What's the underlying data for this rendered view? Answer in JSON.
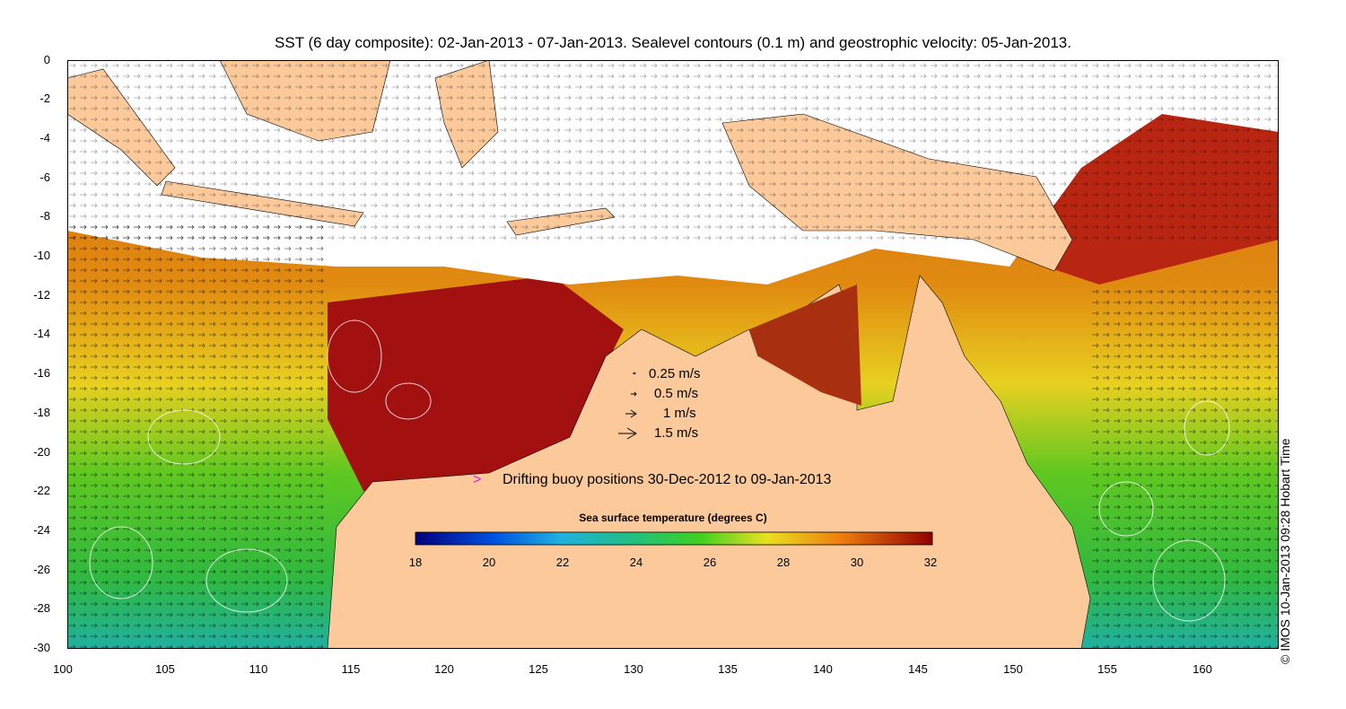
{
  "title": "SST (6 day composite): 02-Jan-2013 - 07-Jan-2013. Sealevel contours (0.1 m) and geostrophic velocity: 05-Jan-2013.",
  "axes": {
    "y_ticks": [
      "0",
      "-2",
      "-4",
      "-6",
      "-8",
      "-10",
      "-12",
      "-14",
      "-16",
      "-18",
      "-20",
      "-22",
      "-24",
      "-26",
      "-28",
      "-30"
    ],
    "x_ticks": [
      "100",
      "105",
      "110",
      "115",
      "120",
      "125",
      "130",
      "135",
      "140",
      "145",
      "150",
      "155",
      "160"
    ]
  },
  "velocity_legend": [
    {
      "label": "0.25 m/s",
      "scale": 0.25
    },
    {
      "label": "0.5 m/s",
      "scale": 0.5
    },
    {
      "label": "1 m/s",
      "scale": 1
    },
    {
      "label": "1.5 m/s",
      "scale": 1.5
    }
  ],
  "buoy_legend": {
    "marker": ">",
    "text": "Drifting buoy positions 30-Dec-2012 to 09-Jan-2013"
  },
  "colorbar": {
    "title": "Sea surface temperature (degrees C)",
    "labels": [
      "18",
      "20",
      "22",
      "24",
      "26",
      "28",
      "30",
      "32"
    ]
  },
  "colors": {
    "land": "#fbc99a",
    "cloud": "#ffffff",
    "sst_hot": "#a31010",
    "sst_warm": "#d86a10",
    "sst_mid": "#f0c020",
    "sst_green": "#40c020",
    "sst_cool": "#20b0b0",
    "buoy": "#d020d0"
  },
  "stamp": "© IMOS 10-Jan-2013 09:28 Hobart Time"
}
